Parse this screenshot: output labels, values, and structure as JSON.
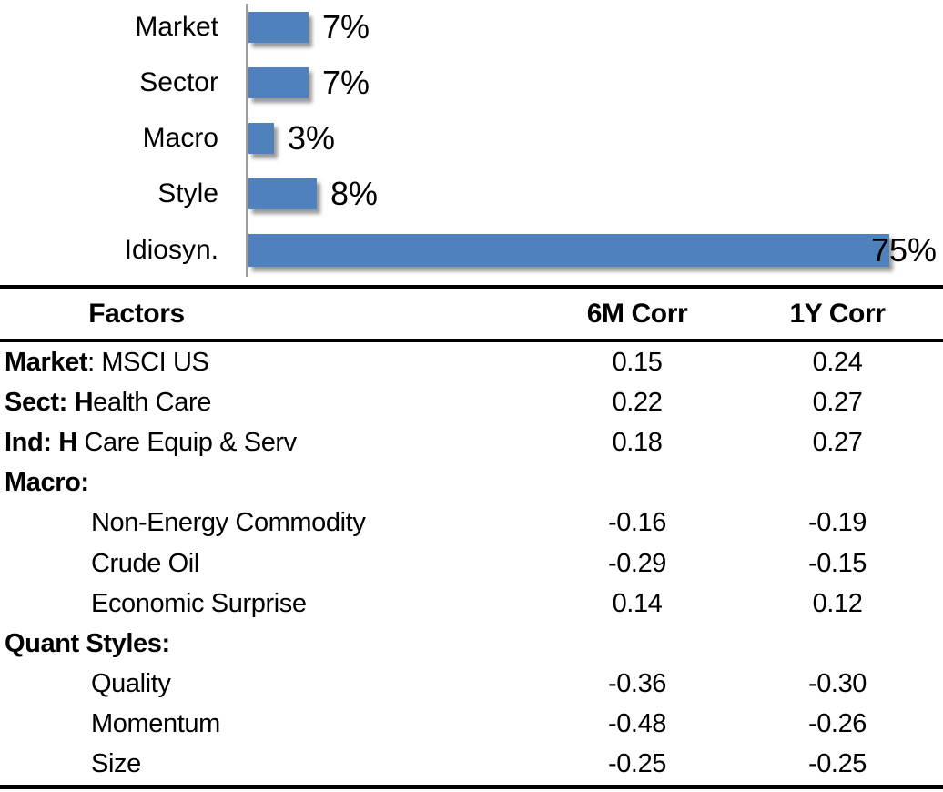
{
  "chart_data": {
    "type": "bar",
    "orientation": "horizontal",
    "title": "",
    "categories": [
      "Market",
      "Sector",
      "Macro",
      "Style",
      "Idiosyn."
    ],
    "values": [
      7,
      7,
      3,
      8,
      75
    ],
    "value_labels": [
      "7%",
      "7%",
      "3%",
      "8%",
      "75%"
    ],
    "xlim": [
      0,
      80
    ],
    "grid": false,
    "legend": false,
    "bar_color": "#4f81bd",
    "axis_line_color": "#9d9d9d"
  },
  "table": {
    "headers": [
      "Factors",
      "6M Corr",
      "1Y Corr"
    ],
    "rows": [
      {
        "label_bold": "Market",
        "label_rest": ": MSCI US",
        "indent": false,
        "corr6m": "0.15",
        "corr1y": "0.24"
      },
      {
        "label_bold": "Sect: H",
        "label_rest": "ealth Care",
        "indent": false,
        "corr6m": "0.22",
        "corr1y": "0.27"
      },
      {
        "label_bold": "Ind: H",
        "label_rest": " Care Equip & Serv",
        "indent": false,
        "corr6m": "0.18",
        "corr1y": "0.27"
      },
      {
        "label_bold": "Macro:",
        "label_rest": "",
        "indent": false,
        "corr6m": "",
        "corr1y": ""
      },
      {
        "label_bold": "",
        "label_rest": "Non-Energy Commodity",
        "indent": true,
        "corr6m": "-0.16",
        "corr1y": "-0.19"
      },
      {
        "label_bold": "",
        "label_rest": "Crude Oil",
        "indent": true,
        "corr6m": "-0.29",
        "corr1y": "-0.15"
      },
      {
        "label_bold": "",
        "label_rest": "Economic Surprise",
        "indent": true,
        "corr6m": "0.14",
        "corr1y": "0.12"
      },
      {
        "label_bold": "Quant Styles:",
        "label_rest": "",
        "indent": false,
        "corr6m": "",
        "corr1y": ""
      },
      {
        "label_bold": "",
        "label_rest": "Quality",
        "indent": true,
        "corr6m": "-0.36",
        "corr1y": "-0.30"
      },
      {
        "label_bold": "",
        "label_rest": "Momentum",
        "indent": true,
        "corr6m": "-0.48",
        "corr1y": "-0.26"
      },
      {
        "label_bold": "",
        "label_rest": "Size",
        "indent": true,
        "corr6m": "-0.25",
        "corr1y": "-0.25"
      }
    ]
  }
}
